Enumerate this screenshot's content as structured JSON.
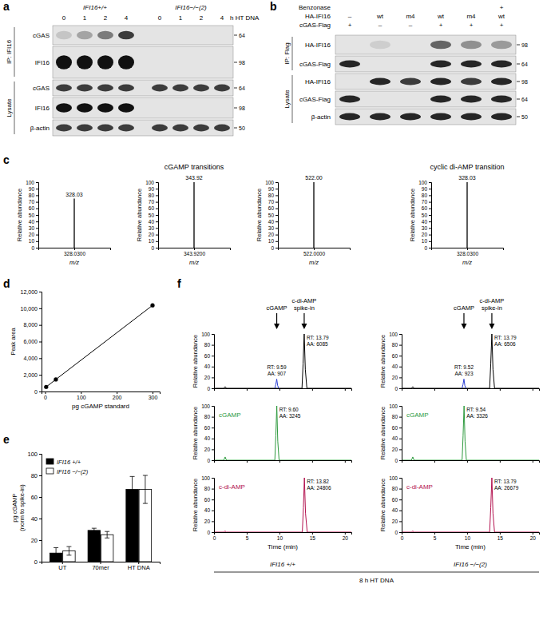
{
  "figure": {
    "panel_labels": [
      "a",
      "b",
      "c",
      "d",
      "e",
      "f"
    ]
  },
  "blots": [
    {
      "groups": [
        {
          "label": "IFI16+/+",
          "lanes": [
            "0",
            "1",
            "2",
            "4"
          ]
        },
        {
          "label": "IFI16−/−(2)",
          "lanes": [
            "0",
            "1",
            "2",
            "4"
          ]
        }
      ],
      "lane_unit": "h HT DNA",
      "sections": [
        {
          "label": "IP: IFI16",
          "rows": [
            {
              "label": "cGAS",
              "mw": 64,
              "bands": [
                0.15,
                0.3,
                0.5,
                0.8,
                0,
                0,
                0,
                0
              ]
            },
            {
              "label": "IFI16",
              "mw": 98,
              "bands": [
                1,
                1,
                1,
                1,
                0,
                0,
                0,
                0
              ]
            }
          ]
        },
        {
          "label": "Lysate",
          "rows": [
            {
              "label": "cGAS",
              "mw": 64,
              "bands": [
                0.8,
                0.8,
                0.8,
                0.8,
                0.8,
                0.8,
                0.8,
                0.8
              ]
            },
            {
              "label": "IFI16",
              "mw": 98,
              "bands": [
                1,
                1,
                1,
                1,
                0,
                0,
                0,
                0
              ]
            },
            {
              "label": "β-actin",
              "mw": 50,
              "bands": [
                0.8,
                0.8,
                0.8,
                0.8,
                0.8,
                0.8,
                0.8,
                0.8
              ]
            }
          ]
        }
      ]
    },
    {
      "conditions": [
        {
          "label": "Benzonase",
          "lanes": [
            null,
            null,
            null,
            null,
            null,
            "+"
          ]
        },
        {
          "label": "HA-IFI16",
          "lanes": [
            "–",
            "wt",
            "m4",
            "wt",
            "m4",
            "wt"
          ]
        },
        {
          "label": "cGAS-Flag",
          "lanes": [
            "+",
            "–",
            "–",
            "+",
            "+",
            "+"
          ]
        }
      ],
      "sections": [
        {
          "label": "IP: Flag",
          "rows": [
            {
              "label": "HA-IFI16",
              "mw": 98,
              "bands": [
                0,
                0.1,
                0,
                0.6,
                0.4,
                0.35
              ]
            },
            {
              "label": "cGAS-Flag",
              "mw": 64,
              "bands": [
                0.9,
                0,
                0,
                0.9,
                0.9,
                0.9
              ]
            }
          ]
        },
        {
          "label": "Lysate",
          "rows": [
            {
              "label": "HA-IFI16",
              "mw": 98,
              "bands": [
                0,
                0.9,
                0.8,
                0.9,
                0.8,
                0.9
              ]
            },
            {
              "label": "cGAS-Flag",
              "mw": 64,
              "bands": [
                0.9,
                0,
                0,
                0.9,
                0.9,
                0.9
              ]
            },
            {
              "label": "β-actin",
              "mw": 50,
              "bands": [
                0.9,
                0.9,
                0.9,
                0.9,
                0.9,
                0.9
              ]
            }
          ]
        }
      ]
    }
  ],
  "chart_data": [
    {
      "type": "stem",
      "title": "cGAMP transitions",
      "x": [
        328.03
      ],
      "values": [
        75
      ],
      "color": "#000000",
      "xlim": [
        327.53,
        328.53
      ],
      "xticks": [
        {
          "value": 328.03,
          "label": "328.0300"
        }
      ],
      "ylim": [
        0,
        100
      ],
      "yticks": [
        0,
        10,
        20,
        30,
        40,
        50,
        60,
        70,
        80,
        90,
        100
      ],
      "xlabel": "m/z",
      "ylabel": "Relative abundance",
      "annotations": [
        {
          "x": 328.03,
          "y": 75,
          "text": "328.03"
        }
      ]
    },
    {
      "type": "stem",
      "x": [
        343.92
      ],
      "values": [
        100
      ],
      "color": "#000000",
      "xlim": [
        343.42,
        344.42
      ],
      "xticks": [
        {
          "value": 343.92,
          "label": "343.9200"
        }
      ],
      "ylim": [
        0,
        100
      ],
      "yticks": [
        0,
        10,
        20,
        30,
        40,
        50,
        60,
        70,
        80,
        90,
        100
      ],
      "xlabel": "m/z",
      "ylabel": "Relative abundance",
      "annotations": [
        {
          "x": 343.92,
          "y": 100,
          "text": "343.92"
        }
      ]
    },
    {
      "type": "stem",
      "x": [
        522
      ],
      "values": [
        100
      ],
      "color": "#000000",
      "xlim": [
        521.5,
        522.5
      ],
      "xticks": [
        {
          "value": 522,
          "label": "522.0000"
        }
      ],
      "ylim": [
        0,
        100
      ],
      "yticks": [
        0,
        10,
        20,
        30,
        40,
        50,
        60,
        70,
        80,
        90,
        100
      ],
      "xlabel": "m/z",
      "ylabel": "Relative abundance",
      "annotations": [
        {
          "x": 522,
          "y": 100,
          "text": "522.00"
        }
      ]
    },
    {
      "type": "stem",
      "title": "cyclic di-AMP transition",
      "x": [
        328.03
      ],
      "values": [
        100
      ],
      "color": "#000000",
      "xlim": [
        327.53,
        328.53
      ],
      "xticks": [
        {
          "value": 328.03,
          "label": "328.0300"
        }
      ],
      "ylim": [
        0,
        100
      ],
      "yticks": [
        0,
        10,
        20,
        30,
        40,
        50,
        60,
        70,
        80,
        90,
        100
      ],
      "xlabel": "m/z",
      "ylabel": "Relative abundance",
      "annotations": [
        {
          "x": 328.03,
          "y": 100,
          "text": "328.03"
        }
      ]
    },
    {
      "type": "line",
      "x": [
        3,
        30,
        300
      ],
      "values": [
        550,
        1450,
        10350
      ],
      "color": "#000000",
      "marker": "circle",
      "line_style": "solid",
      "xlim": [
        -10,
        320
      ],
      "xticks": [
        0,
        100,
        200,
        300
      ],
      "ylim": [
        0,
        12000
      ],
      "yticks": [
        0,
        {
          "value": 2000,
          "label": "2,000"
        },
        {
          "value": 4000,
          "label": "4,000"
        },
        {
          "value": 6000,
          "label": "6,000"
        },
        {
          "value": 8000,
          "label": "8,000"
        },
        {
          "value": 10000,
          "label": "10,000"
        },
        {
          "value": 12000,
          "label": "12,000"
        }
      ],
      "xlabel": "pg cGAMP standard",
      "ylabel": "Peak area"
    },
    {
      "type": "bar",
      "categories": [
        "UT",
        "70mer",
        "HT DNA"
      ],
      "series": [
        {
          "name": "IFI16 +/+",
          "color": "#000000",
          "values": [
            8,
            29,
            67
          ],
          "errors": [
            5,
            2,
            12
          ]
        },
        {
          "name": "IFI16 −/−(2)",
          "color": "#ffffff",
          "values": [
            10,
            25,
            67
          ],
          "errors": [
            4,
            3,
            13
          ]
        }
      ],
      "ylim": [
        0,
        100
      ],
      "yticks": [
        0,
        20,
        40,
        60,
        80,
        100
      ],
      "ylabel": [
        "pg cGAMP",
        "(norm to spike-in)"
      ],
      "legend": "top-left"
    },
    {
      "type": "line",
      "xlim": [
        0,
        21
      ],
      "xticks": [
        0,
        5,
        10,
        15,
        20
      ],
      "ylim": [
        0,
        100
      ],
      "yticks": [
        0,
        20,
        40,
        60,
        80,
        100
      ],
      "ylabel": "Relative abundance",
      "tick_labels": "y",
      "series": [
        {
          "color": "#000000",
          "x": [
            0,
            1.5,
            1.7,
            1.9,
            13.45,
            13.62,
            13.79,
            13.96,
            14.2,
            21
          ],
          "values": [
            0,
            0,
            3,
            0,
            0,
            45,
            100,
            35,
            0,
            0
          ]
        },
        {
          "color": "#2b3fd6",
          "x": [
            9.3,
            9.45,
            9.59,
            9.73,
            9.9
          ],
          "values": [
            0,
            7,
            17,
            5,
            0
          ]
        }
      ],
      "annotations": [
        {
          "x": 9.59,
          "y": 17,
          "text": [
            "RT: 9.59",
            "AA: 907"
          ]
        },
        {
          "x": 13.79,
          "y": 100,
          "text": [
            "RT: 13.79",
            "AA: 6085"
          ]
        }
      ],
      "callouts": [
        {
          "x": 9.59,
          "text": [
            "cGAMP"
          ]
        },
        {
          "x": 13.79,
          "text": [
            "c-di-AMP",
            "spike-in"
          ]
        }
      ]
    },
    {
      "type": "line",
      "xlim": [
        0,
        21
      ],
      "xticks": [
        0,
        5,
        10,
        15,
        20
      ],
      "ylim": [
        0,
        100
      ],
      "yticks": [
        0,
        20,
        40,
        60,
        80,
        100
      ],
      "ylabel": "Relative abundance",
      "tick_labels": "y",
      "series": [
        {
          "color": "#000000",
          "x": [
            0,
            1.5,
            1.7,
            1.9,
            13.45,
            13.62,
            13.79,
            13.96,
            14.2,
            21
          ],
          "values": [
            0,
            0,
            3,
            0,
            0,
            45,
            100,
            35,
            0,
            0
          ]
        },
        {
          "color": "#2b3fd6",
          "x": [
            9.23,
            9.38,
            9.52,
            9.66,
            9.83
          ],
          "values": [
            0,
            7,
            17,
            5,
            0
          ]
        }
      ],
      "annotations": [
        {
          "x": 9.52,
          "y": 17,
          "text": [
            "RT: 9.52",
            "AA: 923"
          ]
        },
        {
          "x": 13.79,
          "y": 100,
          "text": [
            "RT: 13.79",
            "AA: 6506"
          ]
        }
      ],
      "callouts": [
        {
          "x": 9.52,
          "text": [
            "cGAMP"
          ]
        },
        {
          "x": 13.79,
          "text": [
            "c-di-AMP",
            "spike-in"
          ]
        }
      ]
    },
    {
      "type": "line",
      "xlim": [
        0,
        21
      ],
      "xticks": [
        0,
        5,
        10,
        15,
        20
      ],
      "ylim": [
        0,
        100
      ],
      "yticks": [
        0,
        20,
        40,
        60,
        80,
        100
      ],
      "ylabel": "Relative abundance",
      "tick_labels": "y",
      "legend": "left",
      "series": [
        {
          "name": "cGAMP",
          "color": "#2e9a3e",
          "x": [
            0,
            1.5,
            1.7,
            1.9,
            9.3,
            9.45,
            9.6,
            9.75,
            9.95,
            21
          ],
          "values": [
            0,
            0,
            6,
            0,
            0,
            45,
            100,
            35,
            0,
            0
          ]
        }
      ],
      "annotations": [
        {
          "x": 9.6,
          "y": 100,
          "text": [
            "RT: 9.60",
            "AA: 3245"
          ]
        }
      ]
    },
    {
      "type": "line",
      "xlim": [
        0,
        21
      ],
      "xticks": [
        0,
        5,
        10,
        15,
        20
      ],
      "ylim": [
        0,
        100
      ],
      "yticks": [
        0,
        20,
        40,
        60,
        80,
        100
      ],
      "ylabel": "Relative abundance",
      "tick_labels": "y",
      "legend": "left",
      "series": [
        {
          "name": "cGAMP",
          "color": "#2e9a3e",
          "x": [
            0,
            1.5,
            1.7,
            1.9,
            9.24,
            9.39,
            9.54,
            9.69,
            9.89,
            21
          ],
          "values": [
            0,
            0,
            6,
            0,
            0,
            45,
            100,
            35,
            0,
            0
          ]
        }
      ],
      "annotations": [
        {
          "x": 9.54,
          "y": 100,
          "text": [
            "RT: 9.54",
            "AA: 3326"
          ]
        }
      ]
    },
    {
      "type": "line",
      "xlim": [
        0,
        21
      ],
      "xticks": [
        0,
        5,
        10,
        15,
        20
      ],
      "ylim": [
        0,
        100
      ],
      "yticks": [
        0,
        20,
        40,
        60,
        80,
        100
      ],
      "xlabel": "Time (min)",
      "ylabel": "Relative abundance",
      "legend": "left",
      "series": [
        {
          "name": "c-di-AMP",
          "color": "#b3124f",
          "x": [
            0,
            1.5,
            1.7,
            1.9,
            13.5,
            13.67,
            13.82,
            13.99,
            14.25,
            21
          ],
          "values": [
            0,
            0,
            2,
            0,
            0,
            45,
            100,
            35,
            0,
            0
          ]
        }
      ],
      "annotations": [
        {
          "x": 13.82,
          "y": 100,
          "text": [
            "RT: 13.82",
            "AA: 24806"
          ]
        }
      ]
    },
    {
      "type": "line",
      "xlim": [
        0,
        21
      ],
      "xticks": [
        0,
        5,
        10,
        15,
        20
      ],
      "ylim": [
        0,
        100
      ],
      "yticks": [
        0,
        20,
        40,
        60,
        80,
        100
      ],
      "xlabel": "Time (min)",
      "ylabel": "Relative abundance",
      "legend": "left",
      "series": [
        {
          "name": "c-di-AMP",
          "color": "#b3124f",
          "x": [
            0,
            1.5,
            1.7,
            1.9,
            13.45,
            13.62,
            13.79,
            13.96,
            14.2,
            21
          ],
          "values": [
            0,
            0,
            2,
            0,
            0,
            45,
            100,
            35,
            0,
            0
          ]
        }
      ],
      "annotations": [
        {
          "x": 13.79,
          "y": 100,
          "text": [
            "RT: 13.79",
            "AA: 26679"
          ]
        }
      ]
    }
  ],
  "captions": {
    "f_columns": [
      "IFI16 +/+",
      "IFI16 −/−(2)"
    ],
    "f_condition": "8 h HT DNA"
  }
}
